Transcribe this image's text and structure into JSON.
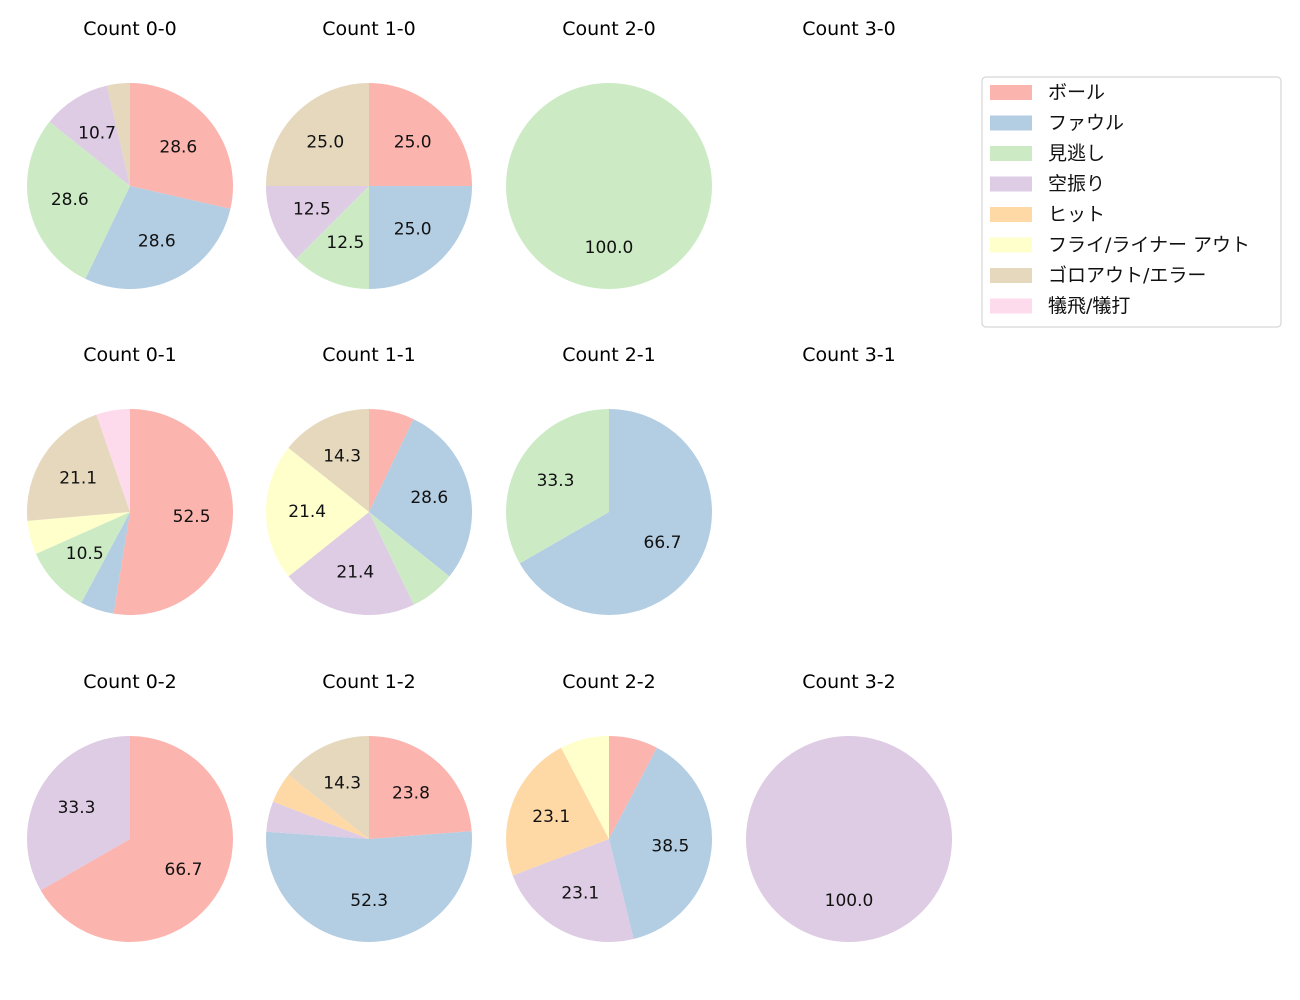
{
  "chart_data": {
    "type": "pie",
    "start_angle_deg": 90,
    "direction": "clockwise",
    "label_format": "percent, 1 decimal, shown for slices >= 10%",
    "legend": {
      "placement": "top-right",
      "entries": [
        "ボール",
        "ファウル",
        "見逃し",
        "空振り",
        "ヒット",
        "フライ/ライナー アウト",
        "ゴロアウト/エラー",
        "犠飛/犠打"
      ],
      "colors": [
        "#fbb4ae",
        "#b3cde3",
        "#ccebc5",
        "#decbe4",
        "#fed9a6",
        "#ffffcc",
        "#e5d8bd",
        "#fddaec"
      ]
    },
    "pies": [
      {
        "title": "Count 0-0",
        "values": [
          28.6,
          28.6,
          28.6,
          10.7,
          0,
          0,
          3.6,
          0
        ]
      },
      {
        "title": "Count 1-0",
        "values": [
          25.0,
          25.0,
          12.5,
          12.5,
          0,
          0,
          25.0,
          0
        ]
      },
      {
        "title": "Count 2-0",
        "values": [
          0,
          0,
          100.0,
          0,
          0,
          0,
          0,
          0
        ]
      },
      {
        "title": "Count 3-0",
        "values": []
      },
      {
        "title": "Count 0-1",
        "values": [
          52.6,
          5.3,
          10.5,
          0,
          0,
          5.3,
          21.1,
          5.3
        ]
      },
      {
        "title": "Count 1-1",
        "values": [
          7.1,
          28.6,
          7.1,
          21.4,
          0,
          21.4,
          14.3,
          0
        ]
      },
      {
        "title": "Count 2-1",
        "values": [
          0,
          66.7,
          33.3,
          0,
          0,
          0,
          0,
          0
        ]
      },
      {
        "title": "Count 3-1",
        "values": []
      },
      {
        "title": "Count 0-2",
        "values": [
          66.7,
          0,
          0,
          33.3,
          0,
          0,
          0,
          0
        ]
      },
      {
        "title": "Count 1-2",
        "values": [
          23.8,
          52.4,
          0,
          4.8,
          4.8,
          0,
          14.3,
          0
        ]
      },
      {
        "title": "Count 2-2",
        "values": [
          7.7,
          38.5,
          0,
          23.1,
          23.1,
          7.7,
          0,
          0
        ]
      },
      {
        "title": "Count 3-2",
        "values": [
          0,
          0,
          0,
          100.0,
          0,
          0,
          0,
          0
        ]
      }
    ]
  }
}
